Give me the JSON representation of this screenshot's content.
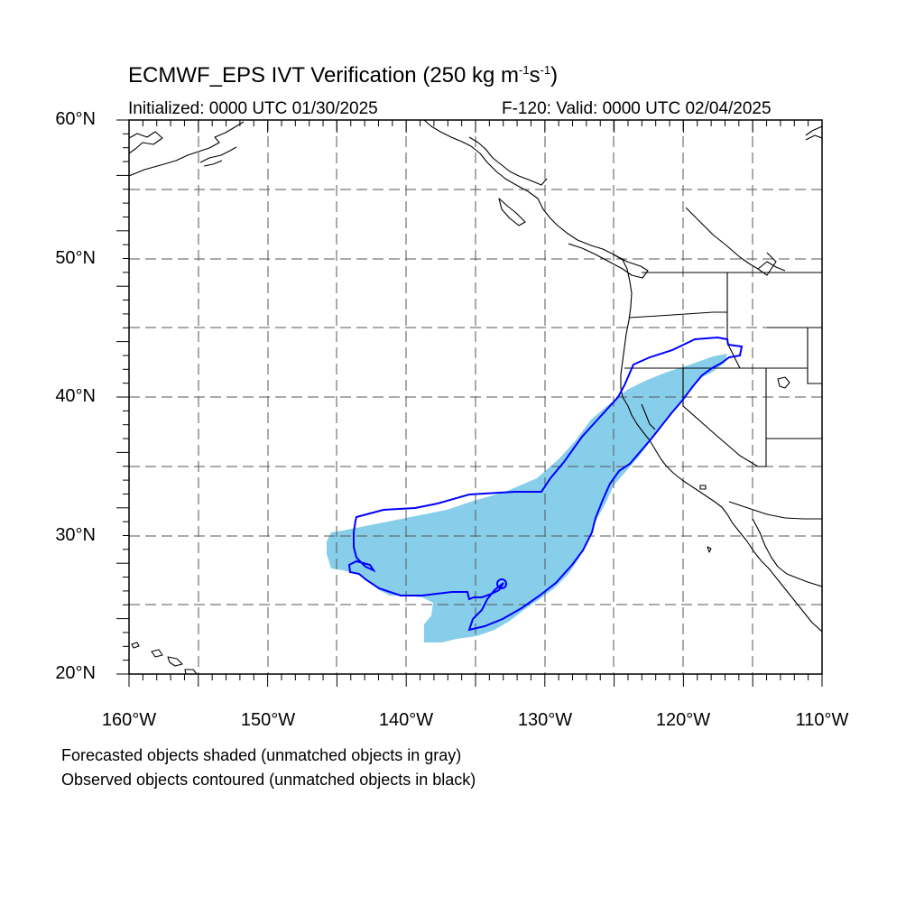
{
  "title": {
    "main": "ECMWF_EPS IVT Verification (250 kg m",
    "sup1": "-1",
    "mid": "s",
    "sup2": "-1",
    "end": ")"
  },
  "initialized": "Initialized: 0000 UTC 01/30/2025",
  "valid": "F-120: Valid: 0000 UTC 02/04/2025",
  "lat_labels": [
    "60°N",
    "50°N",
    "40°N",
    "30°N",
    "20°N"
  ],
  "lon_labels": [
    "160°W",
    "150°W",
    "140°W",
    "130°W",
    "120°W",
    "110°W"
  ],
  "caption_line1": "Forecasted objects shaded (unmatched objects in gray)",
  "caption_line2": "Observed objects contoured (unmatched objects in black)",
  "colors": {
    "forecast_fill": "#87CEEB",
    "observed_contour": "#0000FF",
    "coastline": "#000000",
    "grid": "#555555"
  }
}
